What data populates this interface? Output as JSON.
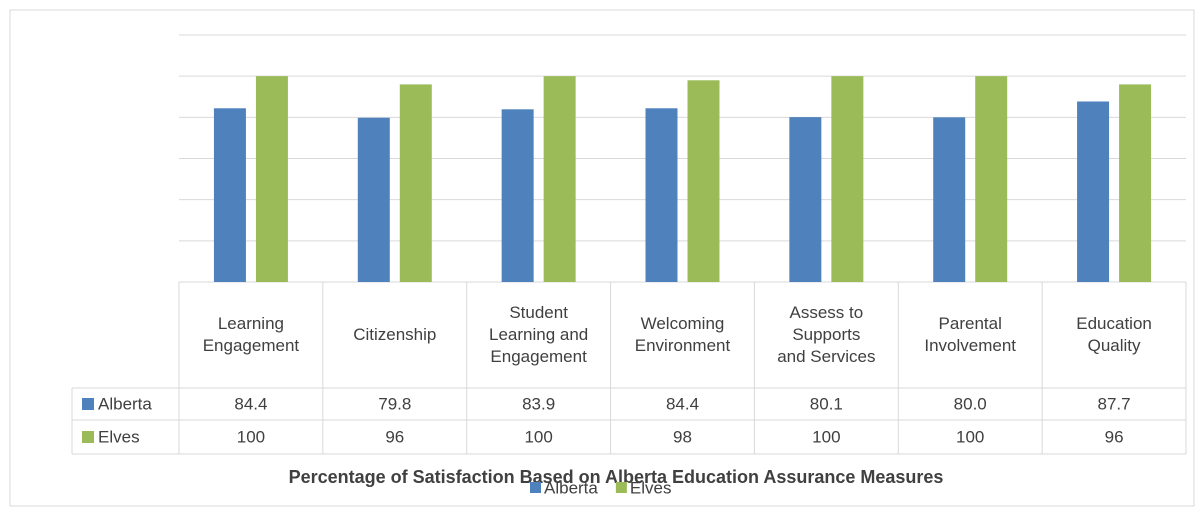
{
  "chart_data": {
    "type": "bar",
    "title": "Percentage of Satisfaction Based on Alberta Education Assurance Measures",
    "categories": [
      "Learning\nEngagement",
      "Citizenship",
      "Student\nLearning and\nEngagement",
      "Welcoming\nEnvironment",
      "Assess to\nSupports\nand Services",
      "Parental\nInvolvement",
      "Education\nQuality"
    ],
    "series": [
      {
        "name": "Alberta",
        "color": "#4f81bd",
        "values": [
          84.4,
          79.8,
          83.9,
          84.4,
          80.1,
          80.0,
          87.7
        ],
        "value_labels": [
          "84.4",
          "79.8",
          "83.9",
          "84.4",
          "80.1",
          "80.0",
          "87.7"
        ]
      },
      {
        "name": "Elves",
        "color": "#9bbb59",
        "values": [
          100,
          96,
          100,
          98,
          100,
          100,
          96
        ]
      }
    ],
    "ylim": [
      0,
      120
    ],
    "yticks": [
      0,
      20,
      40,
      60,
      80,
      100,
      120
    ],
    "grid": true
  }
}
